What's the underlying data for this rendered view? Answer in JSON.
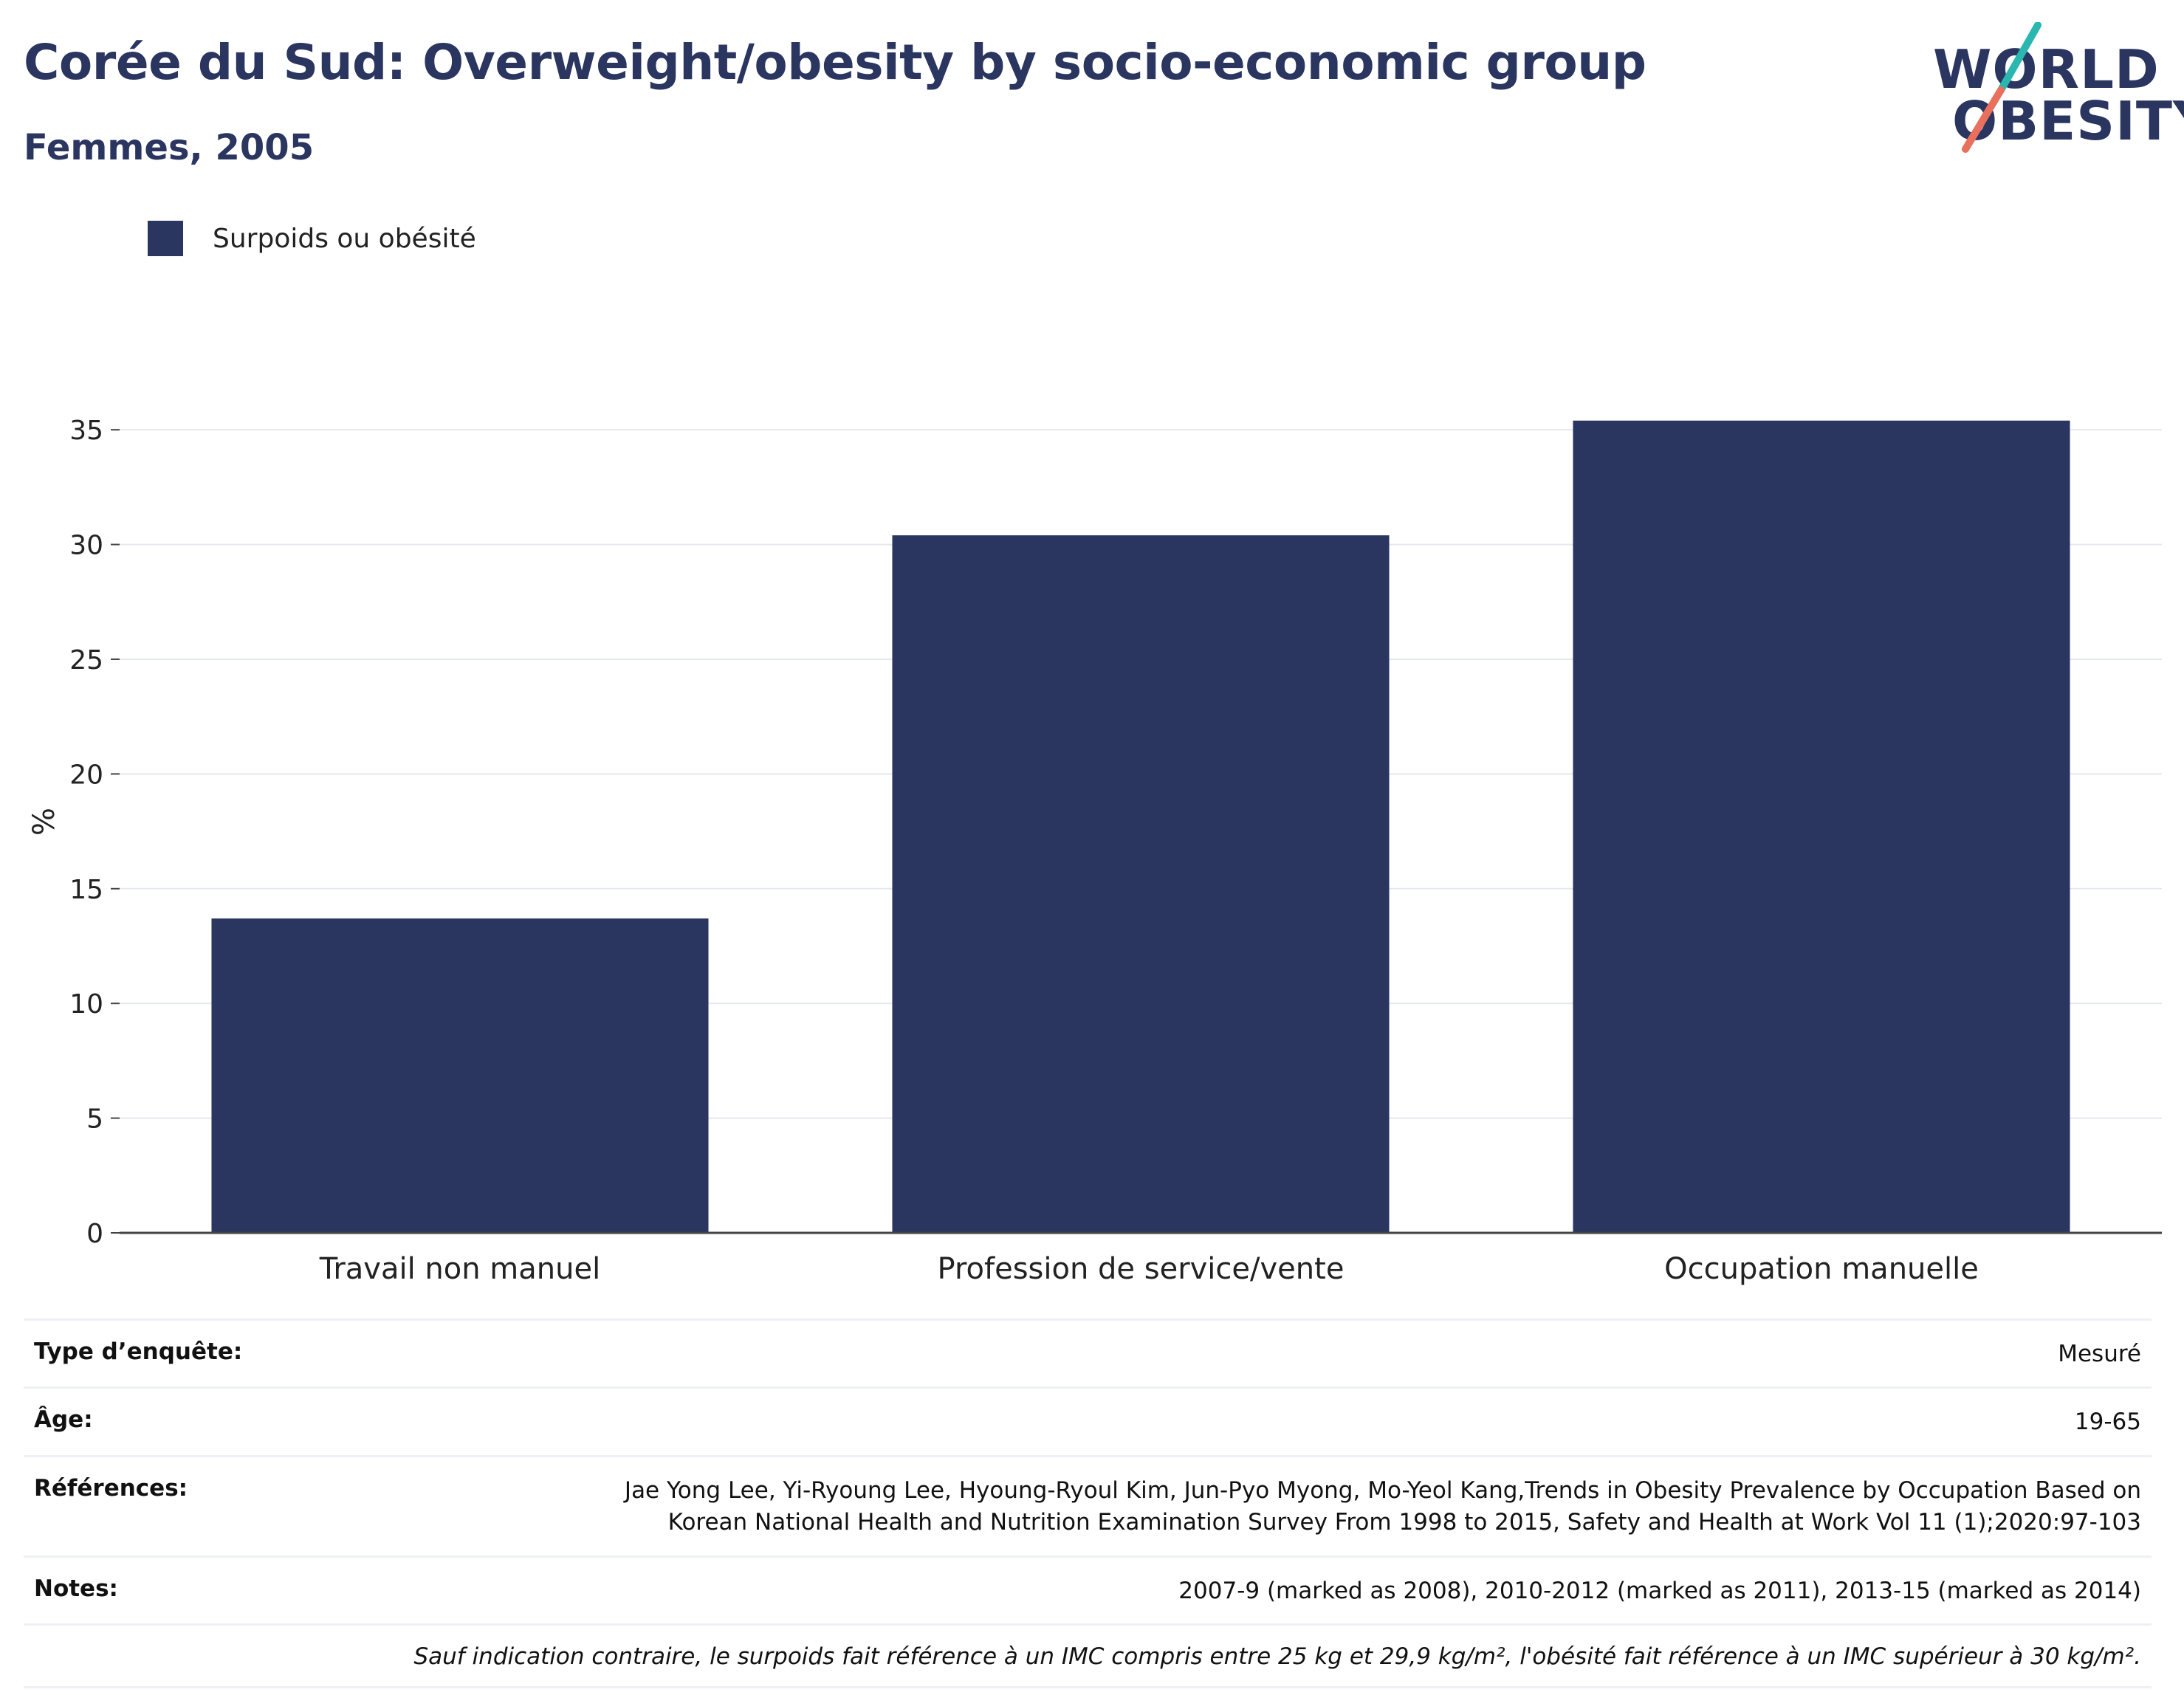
{
  "header": {
    "title": "Corée du Sud: Overweight/obesity by socio-economic group",
    "subtitle": "Femmes, 2005"
  },
  "logo": {
    "line1": "WORLD",
    "line2": "OBESITY",
    "colors": {
      "text": "#2a3560",
      "slash_top": "#2ab7b0",
      "slash_bottom": "#e8705c"
    }
  },
  "legend": {
    "label": "Surpoids ou obésité",
    "color": "#2a3560"
  },
  "chart_data": {
    "type": "bar",
    "categories": [
      "Travail non manuel",
      "Profession de service/vente",
      "Occupation manuelle"
    ],
    "series": [
      {
        "name": "Surpoids ou obésité",
        "values": [
          13.7,
          30.4,
          35.4
        ],
        "color": "#2a3560"
      }
    ],
    "ylabel": "%",
    "ylim": [
      0,
      37
    ],
    "yticks": [
      0,
      5,
      10,
      15,
      20,
      25,
      30,
      35
    ],
    "grid": true
  },
  "info": {
    "survey_type": {
      "key": "Type d’enquête:",
      "value": "Mesuré"
    },
    "age": {
      "key": "Âge:",
      "value": "19-65"
    },
    "references": {
      "key": "Références:",
      "line1": "Jae Yong Lee, Yi-Ryoung Lee, Hyoung-Ryoul Kim, Jun-Pyo Myong, Mo-Yeol Kang,Trends in Obesity Prevalence by Occupation Based on",
      "line2": "Korean National Health and Nutrition Examination Survey From 1998 to 2015, Safety and Health at Work Vol 11 (1);2020:97-103"
    },
    "notes": {
      "key": "Notes:",
      "value": "2007-9 (marked as 2008), 2010-2012 (marked as 2011), 2013-15 (marked as 2014)"
    },
    "footnote": "Sauf indication contraire, le surpoids fait référence à un IMC compris entre 25 kg et 29,9 kg/m², l'obésité fait référence à un IMC supérieur à 30 kg/m²."
  }
}
